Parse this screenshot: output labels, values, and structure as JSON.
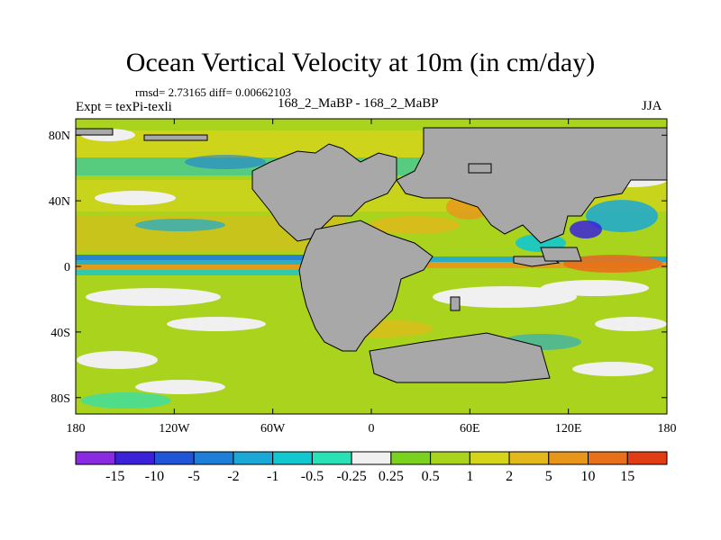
{
  "title": "Ocean Vertical Velocity at 10m (in cm/day)",
  "stats_line": "rmsd= 2.73165 diff= 0.00662103",
  "experiment_label": "Expt = texPi-texli",
  "difference_label": "168_2_MaBP - 168_2_MaBP",
  "season": "JJA",
  "land_color": "#a8a8a8",
  "map": {
    "lon_range": [
      -180,
      180
    ],
    "lat_range": [
      -90,
      90
    ],
    "x_ticks": [
      {
        "lon": -180,
        "label": "180"
      },
      {
        "lon": -120,
        "label": "120W"
      },
      {
        "lon": -60,
        "label": "60W"
      },
      {
        "lon": 0,
        "label": "0"
      },
      {
        "lon": 60,
        "label": "60E"
      },
      {
        "lon": 120,
        "label": "120E"
      },
      {
        "lon": 180,
        "label": "180"
      }
    ],
    "y_ticks": [
      {
        "lat": 80,
        "label": "80N"
      },
      {
        "lat": 40,
        "label": "40N"
      },
      {
        "lat": 0,
        "label": "0"
      },
      {
        "lat": -40,
        "label": "40S"
      },
      {
        "lat": -80,
        "label": "80S"
      }
    ]
  },
  "colorbar": {
    "colors": [
      "#8a2be2",
      "#3b22d9",
      "#1f55d6",
      "#1e7fd8",
      "#1aa8d6",
      "#12c7cf",
      "#2ae0b6",
      "#f0f0f0",
      "#7ad21e",
      "#aad31e",
      "#d4d41a",
      "#e2b81a",
      "#e8961a",
      "#e8701a",
      "#e23c14"
    ],
    "labels": [
      "-15",
      "-10",
      "-5",
      "-2",
      "-1",
      "-0.5",
      "-0.25",
      "0.25",
      "0.5",
      "1",
      "2",
      "5",
      "10",
      "15"
    ]
  }
}
